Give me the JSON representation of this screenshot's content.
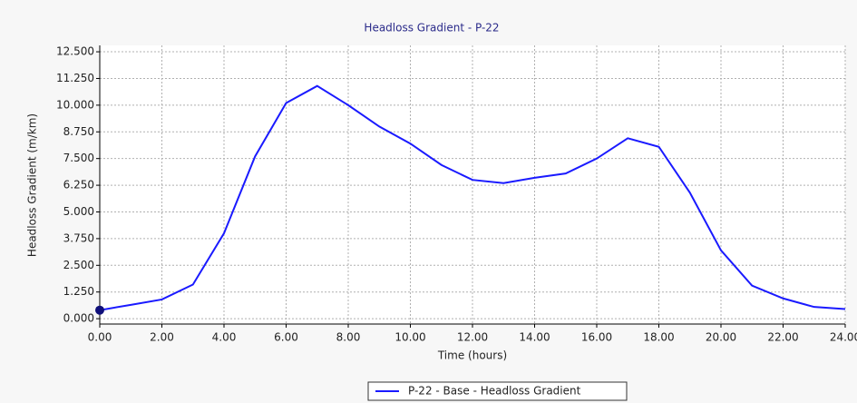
{
  "chart_data": {
    "type": "line",
    "title": "Headloss Gradient - P-22",
    "x_label": "Time (hours)",
    "y_label": "Headloss Gradient (m/km)",
    "x": [
      0,
      1,
      2,
      3,
      4,
      5,
      6,
      7,
      8,
      9,
      10,
      11,
      12,
      13,
      14,
      15,
      16,
      17,
      18,
      19,
      20,
      21,
      22,
      23,
      24
    ],
    "series": [
      {
        "name": "P-22 - Base - Headloss Gradient",
        "color": "#1a1aff",
        "values": [
          0.4,
          0.65,
          0.9,
          1.6,
          4.0,
          7.6,
          10.1,
          10.9,
          10.0,
          9.0,
          8.2,
          7.2,
          6.5,
          6.35,
          6.6,
          6.8,
          7.5,
          8.45,
          8.05,
          5.9,
          3.2,
          1.55,
          0.95,
          0.55,
          0.45
        ]
      }
    ],
    "xlim": [
      0,
      24
    ],
    "ylim": [
      -0.25,
      12.8
    ],
    "xticks": [
      {
        "value": 0,
        "label": "0.00"
      },
      {
        "value": 2,
        "label": "2.00"
      },
      {
        "value": 4,
        "label": "4.00"
      },
      {
        "value": 6,
        "label": "6.00"
      },
      {
        "value": 8,
        "label": "8.00"
      },
      {
        "value": 10,
        "label": "10.00"
      },
      {
        "value": 12,
        "label": "12.00"
      },
      {
        "value": 14,
        "label": "14.00"
      },
      {
        "value": 16,
        "label": "16.00"
      },
      {
        "value": 18,
        "label": "18.00"
      },
      {
        "value": 20,
        "label": "20.00"
      },
      {
        "value": 22,
        "label": "22.00"
      },
      {
        "value": 24,
        "label": "24.00"
      }
    ],
    "yticks": [
      {
        "value": 0,
        "label": "0.000"
      },
      {
        "value": 1.25,
        "label": "1.250"
      },
      {
        "value": 2.5,
        "label": "2.500"
      },
      {
        "value": 3.75,
        "label": "3.750"
      },
      {
        "value": 5,
        "label": "5.000"
      },
      {
        "value": 6.25,
        "label": "6.250"
      },
      {
        "value": 7.5,
        "label": "7.500"
      },
      {
        "value": 8.75,
        "label": "8.750"
      },
      {
        "value": 10,
        "label": "10.000"
      },
      {
        "value": 11.25,
        "label": "11.250"
      },
      {
        "value": 12.5,
        "label": "12.500"
      }
    ],
    "grid": true,
    "legend": "bottom"
  }
}
